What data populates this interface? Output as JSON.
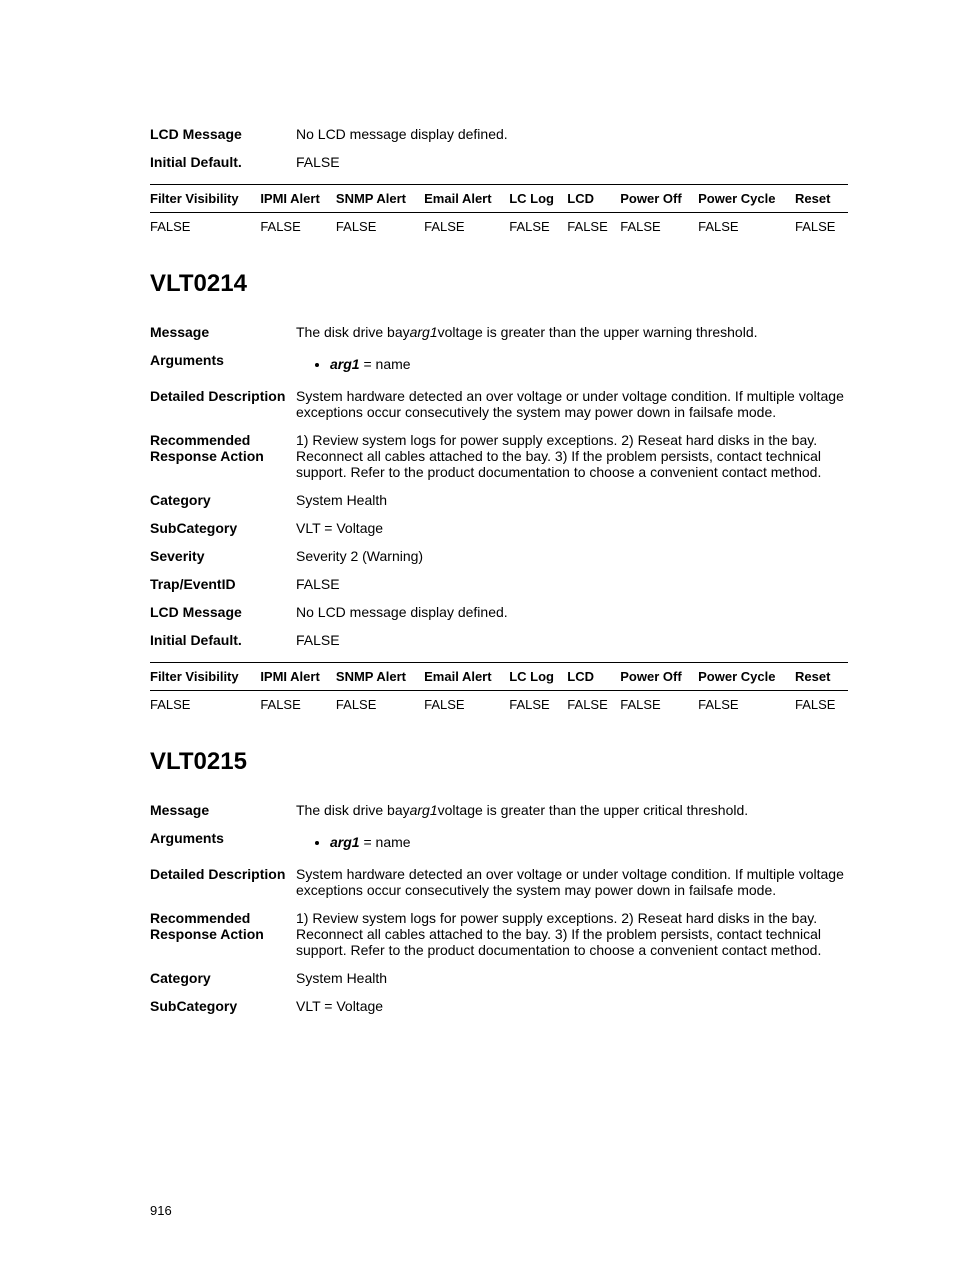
{
  "partial_top": {
    "rows": [
      {
        "label": "LCD Message",
        "value": "No LCD message display defined."
      },
      {
        "label": "Initial Default.",
        "value": "FALSE"
      }
    ]
  },
  "filter_table": {
    "headers": [
      "Filter Visibility",
      "IPMI Alert",
      "SNMP Alert",
      "Email Alert",
      "LC Log",
      "LCD",
      "Power Off",
      "Power Cycle",
      "Reset"
    ],
    "row": [
      "FALSE",
      "FALSE",
      "FALSE",
      "FALSE",
      "FALSE",
      "FALSE",
      "FALSE",
      "FALSE",
      "FALSE"
    ]
  },
  "vlt0214": {
    "title": "VLT0214",
    "message_pre": "The disk drive bay",
    "message_arg": "arg1",
    "message_post": "voltage is greater than the upper warning threshold.",
    "argument_name": "arg1",
    "argument_val": " = name",
    "detailed": "System hardware detected an over voltage or under voltage condition. If multiple voltage exceptions occur consecutively the system may power down in failsafe mode.",
    "recommended": "1) Review system logs for power supply exceptions. 2) Reseat hard disks in the bay. Reconnect all cables attached to the bay. 3) If the problem persists, contact technical support. Refer to the product documentation to choose a convenient contact method.",
    "category": "System Health",
    "subcategory": "VLT = Voltage",
    "severity": "Severity 2 (Warning)",
    "trap": "FALSE",
    "lcd": "No LCD message display defined.",
    "initial": "FALSE",
    "labels": {
      "message": "Message",
      "arguments": "Arguments",
      "detailed": "Detailed Description",
      "recommended": "Recommended Response Action",
      "category": "Category",
      "subcategory": "SubCategory",
      "severity": "Severity",
      "trap": "Trap/EventID",
      "lcd": "LCD Message",
      "initial": "Initial Default."
    }
  },
  "vlt0215": {
    "title": "VLT0215",
    "message_pre": "The disk drive bay",
    "message_arg": "arg1",
    "message_post": "voltage is greater than the upper critical threshold.",
    "argument_name": "arg1",
    "argument_val": " = name",
    "detailed": "System hardware detected an over voltage or under voltage condition. If multiple voltage exceptions occur consecutively the system may power down in failsafe mode.",
    "recommended": "1) Review system logs for power supply exceptions. 2) Reseat hard disks in the bay. Reconnect all cables attached to the bay. 3) If the problem persists, contact technical support. Refer to the product documentation to choose a convenient contact method.",
    "category": "System Health",
    "subcategory": "VLT = Voltage",
    "labels": {
      "message": "Message",
      "arguments": "Arguments",
      "detailed": "Detailed Description",
      "recommended": "Recommended Response Action",
      "category": "Category",
      "subcategory": "SubCategory"
    }
  },
  "page_number": "916"
}
